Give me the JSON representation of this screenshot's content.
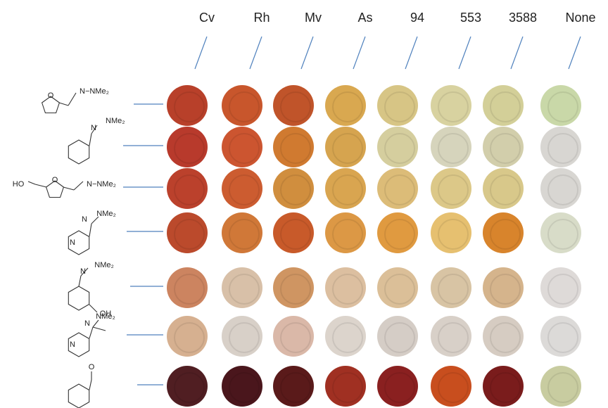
{
  "columns": [
    "Cv",
    "Rh",
    "Mv",
    "As",
    "94",
    "553",
    "3588",
    "None"
  ],
  "rows": [
    {
      "labels": [
        "O",
        "N−NMe₂"
      ],
      "wells": [
        "#b8402a",
        "#c8562c",
        "#c0542a",
        "#d9a850",
        "#d7c585",
        "#d8d2a0",
        "#d3cf98",
        "#c9d8a8"
      ]
    },
    {
      "labels": [
        "N",
        "NMe₂"
      ],
      "wells": [
        "#b83a2c",
        "#cc5530",
        "#d07a30",
        "#d6a44f",
        "#d5ce9e",
        "#d6d4bc",
        "#d2ceab",
        "#d8d6d2"
      ]
    },
    {
      "labels": [
        "HO",
        "O",
        "N−NMe₂"
      ],
      "wells": [
        "#bb412c",
        "#cc5c30",
        "#d08e3e",
        "#d9a550",
        "#dcbc78",
        "#dcc888",
        "#d8c88a",
        "#d8d6d2"
      ]
    },
    {
      "labels": [
        "N",
        "NMe₂",
        "N"
      ],
      "wells": [
        "#bb4a2c",
        "#d07838",
        "#c85a2a",
        "#dc9845",
        "#e09a40",
        "#e6c070",
        "#d8842c",
        "#d8dcc8"
      ]
    },
    {
      "labels": [
        "N",
        "NMe₂",
        "OH"
      ],
      "wells": [
        "#cc8460",
        "#d8c0a8",
        "#cf9562",
        "#dcbfa0",
        "#dbbf98",
        "#d8c4a4",
        "#d5b48c",
        "#dedad8"
      ]
    },
    {
      "labels": [
        "N",
        "NMe₂",
        "N"
      ],
      "wells": [
        "#d6b090",
        "#d8d0c8",
        "#dab8a8",
        "#dcd4cc",
        "#d5cdc6",
        "#d8d0c8",
        "#d6ccc2",
        "#dcdad8"
      ]
    },
    {
      "labels": [
        "O"
      ],
      "wells": [
        "#501e22",
        "#4a161c",
        "#5a1a1a",
        "#a03022",
        "#8a2020",
        "#c84e1e",
        "#7a1c1c",
        "#c8cca0"
      ]
    }
  ]
}
